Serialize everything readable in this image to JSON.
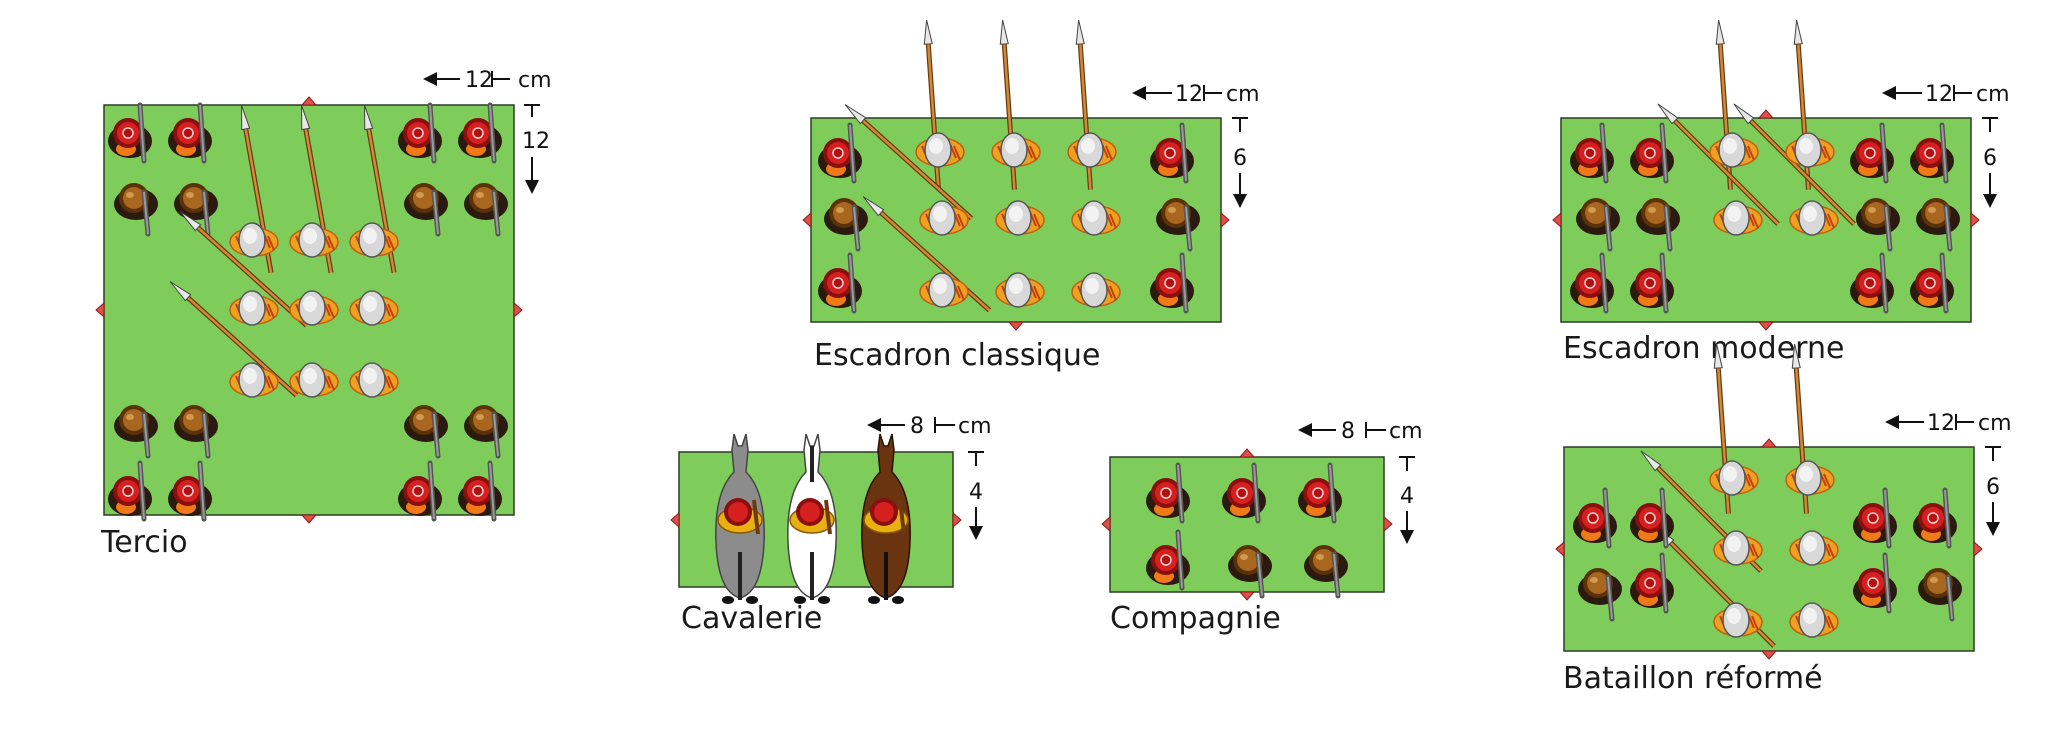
{
  "colors": {
    "field": "#7ecd5b",
    "marker": "#e0504a",
    "helmet_red": "#d62020",
    "helmet_brown": "#a8661e",
    "pike_shaft": "#b5752a",
    "pikeman_cloth": "#f0a020",
    "armour": "#d8d8d8",
    "horse_grey": "#8c8c8c",
    "horse_white": "#ffffff",
    "horse_brown": "#6b3410"
  },
  "units": [
    {
      "id": "tercio",
      "caption": "Tercio",
      "width_cm": "12",
      "depth_cm": "12",
      "unit": "cm"
    },
    {
      "id": "escadron-classique",
      "caption": "Escadron classique",
      "width_cm": "12",
      "depth_cm": "6",
      "unit": "cm"
    },
    {
      "id": "escadron-moderne",
      "caption": "Escadron moderne",
      "width_cm": "12",
      "depth_cm": "6",
      "unit": "cm"
    },
    {
      "id": "cavalerie",
      "caption": "Cavalerie",
      "width_cm": "8",
      "depth_cm": "4",
      "unit": "cm"
    },
    {
      "id": "compagnie",
      "caption": "Compagnie",
      "width_cm": "8",
      "depth_cm": "4",
      "unit": "cm"
    },
    {
      "id": "bataillon-reforme",
      "caption": "Bataillon réformé",
      "width_cm": "12",
      "depth_cm": "6",
      "unit": "cm"
    }
  ]
}
